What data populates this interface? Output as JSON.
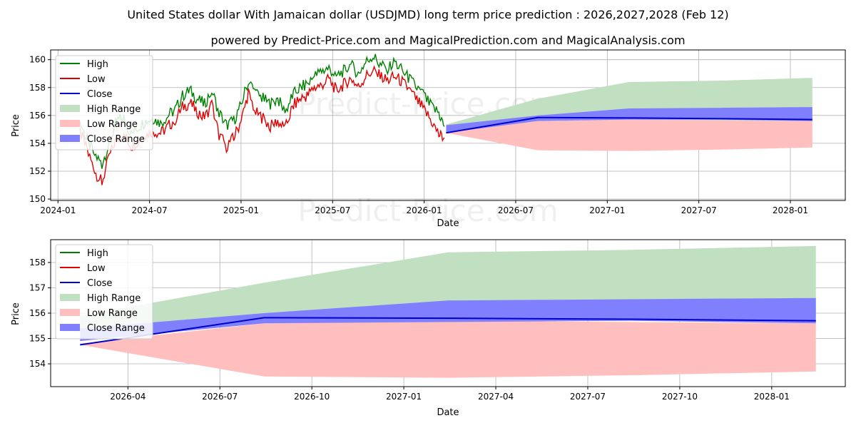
{
  "title_line1": "United States dollar With Jamaican dollar (USDJMD) long term price prediction : 2026,2027,2028 (Feb 12)",
  "title_line2": "powered by Predict-Price.com and MagicalPrediction.com and MagicalAnalysis.com",
  "watermark": "Predict-Price.com",
  "colors": {
    "high": "#008000",
    "low": "#e00000",
    "close": "#0000cc",
    "high_range": "#c1dfc1",
    "low_range": "#ffbfbf",
    "close_range": "#8080ff",
    "grid": "#b0b0b0"
  },
  "legend": [
    "High",
    "Low",
    "Close",
    "High Range",
    "Low Range",
    "Close Range"
  ],
  "chart_data": [
    {
      "type": "line",
      "panel": "top",
      "xlabel": "Date",
      "ylabel": "Price",
      "xlim": [
        2023.96,
        2028.3
      ],
      "ylim": [
        149.9,
        160.7
      ],
      "yticks": [
        150,
        152,
        154,
        156,
        158,
        160
      ],
      "xticks": [
        {
          "value": 2024.0,
          "label": "2024-01"
        },
        {
          "value": 2024.5,
          "label": "2024-07"
        },
        {
          "value": 2025.0,
          "label": "2025-01"
        },
        {
          "value": 2025.5,
          "label": "2025-07"
        },
        {
          "value": 2026.0,
          "label": "2026-01"
        },
        {
          "value": 2026.5,
          "label": "2026-07"
        },
        {
          "value": 2027.0,
          "label": "2027-01"
        },
        {
          "value": 2027.5,
          "label": "2027-07"
        },
        {
          "value": 2028.0,
          "label": "2028-01"
        }
      ],
      "history": {
        "x": [
          2024.12,
          2024.16,
          2024.2,
          2024.24,
          2024.28,
          2024.32,
          2024.36,
          2024.4,
          2024.44,
          2024.48,
          2024.52,
          2024.56,
          2024.6,
          2024.64,
          2024.68,
          2024.72,
          2024.76,
          2024.8,
          2024.84,
          2024.88,
          2024.92,
          2024.96,
          2025.0,
          2025.04,
          2025.08,
          2025.12,
          2025.16,
          2025.2,
          2025.24,
          2025.28,
          2025.32,
          2025.36,
          2025.4,
          2025.44,
          2025.48,
          2025.52,
          2025.56,
          2025.6,
          2025.64,
          2025.68,
          2025.72,
          2025.76,
          2025.8,
          2025.84,
          2025.88,
          2025.92,
          2025.96,
          2026.0,
          2026.04,
          2026.08,
          2026.11
        ],
        "high": [
          155.5,
          154.2,
          153.2,
          152.5,
          154.0,
          155.6,
          155.8,
          154.6,
          155.2,
          155.6,
          155.8,
          155.4,
          156.0,
          156.4,
          157.4,
          157.8,
          157.2,
          156.8,
          157.8,
          156.2,
          155.3,
          155.6,
          156.8,
          158.5,
          157.6,
          157.2,
          156.8,
          157.2,
          156.2,
          157.4,
          158.0,
          158.2,
          158.8,
          159.2,
          159.4,
          158.8,
          159.2,
          159.6,
          159.0,
          159.8,
          160.3,
          159.6,
          159.4,
          159.8,
          159.2,
          158.6,
          158.0,
          157.4,
          156.6,
          156.2,
          155.2
        ],
        "low": [
          154.8,
          153.5,
          152.0,
          151.2,
          153.0,
          154.4,
          154.6,
          153.8,
          154.2,
          154.6,
          154.9,
          154.7,
          155.2,
          155.7,
          156.6,
          156.9,
          156.3,
          155.8,
          156.8,
          154.6,
          153.8,
          154.4,
          155.6,
          157.6,
          156.2,
          155.8,
          155.2,
          155.6,
          155.0,
          156.6,
          157.2,
          157.4,
          158.0,
          158.2,
          158.6,
          157.8,
          158.2,
          158.7,
          158.0,
          158.8,
          159.2,
          158.8,
          158.5,
          158.8,
          158.4,
          157.8,
          157.1,
          156.4,
          155.6,
          154.6,
          154.4
        ]
      },
      "prediction": {
        "x": [
          2026.12,
          2026.62,
          2027.12,
          2027.62,
          2028.12
        ],
        "close": [
          154.75,
          155.85,
          155.82,
          155.77,
          155.7
        ],
        "high_range": [
          [
            154.9,
            155.35
          ],
          [
            155.6,
            157.2
          ],
          [
            155.7,
            158.4
          ],
          [
            155.6,
            158.5
          ],
          [
            155.5,
            158.7
          ]
        ],
        "low_range": [
          [
            154.75,
            154.8
          ],
          [
            153.5,
            155.6
          ],
          [
            153.45,
            155.7
          ],
          [
            153.55,
            155.65
          ],
          [
            153.7,
            155.6
          ]
        ],
        "close_range": [
          [
            154.75,
            155.3
          ],
          [
            155.6,
            156.0
          ],
          [
            155.7,
            156.5
          ],
          [
            155.7,
            156.55
          ],
          [
            155.6,
            156.6
          ]
        ]
      }
    },
    {
      "type": "line",
      "panel": "bottom",
      "xlabel": "Date",
      "ylabel": "Price",
      "xlim": [
        2026.04,
        2028.2
      ],
      "ylim": [
        153.1,
        158.9
      ],
      "yticks": [
        154,
        155,
        156,
        157,
        158
      ],
      "xticks": [
        {
          "value": 2026.25,
          "label": "2026-04"
        },
        {
          "value": 2026.5,
          "label": "2026-07"
        },
        {
          "value": 2026.75,
          "label": "2026-10"
        },
        {
          "value": 2027.0,
          "label": "2027-01"
        },
        {
          "value": 2027.25,
          "label": "2027-04"
        },
        {
          "value": 2027.5,
          "label": "2027-07"
        },
        {
          "value": 2027.75,
          "label": "2027-10"
        },
        {
          "value": 2028.0,
          "label": "2028-01"
        }
      ],
      "prediction": {
        "x": [
          2026.12,
          2026.62,
          2027.12,
          2027.62,
          2028.12
        ],
        "close": [
          154.75,
          155.82,
          155.8,
          155.76,
          155.7
        ],
        "high_range": [
          [
            155.3,
            155.9
          ],
          [
            155.9,
            157.2
          ],
          [
            156.0,
            158.4
          ],
          [
            156.0,
            158.5
          ],
          [
            155.9,
            158.65
          ]
        ],
        "low_range": [
          [
            154.75,
            154.8
          ],
          [
            153.5,
            155.6
          ],
          [
            153.45,
            155.7
          ],
          [
            153.55,
            155.65
          ],
          [
            153.7,
            155.6
          ]
        ],
        "close_range": [
          [
            154.9,
            155.4
          ],
          [
            155.6,
            156.0
          ],
          [
            155.65,
            156.5
          ],
          [
            155.7,
            156.55
          ],
          [
            155.6,
            156.6
          ]
        ]
      }
    }
  ]
}
